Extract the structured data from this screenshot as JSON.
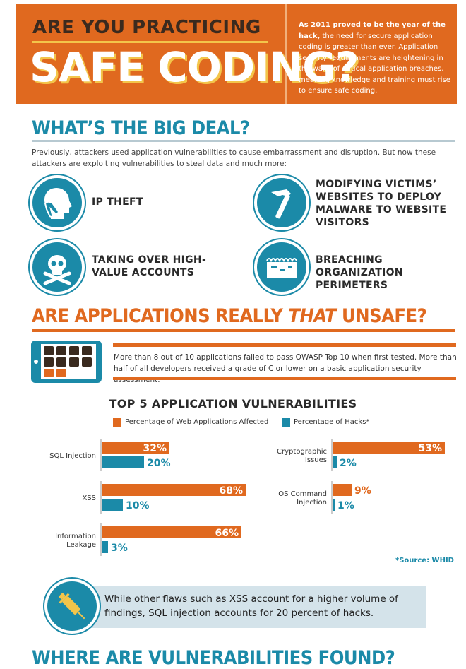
{
  "header": {
    "title_line1": "ARE YOU PRACTICING",
    "title_line2": "SAFE CODING?",
    "intro_bold": "As 2011 proved to be the year of the hack,",
    "intro_rest": "the need for secure application coding is greater than ever. Application security requirements are heightening in the wake of critical application breaches, meaning knowledge and training must rise to ensure safe coding."
  },
  "big_deal": {
    "title": "WHAT’S THE BIG DEAL?",
    "text": "Previously, attackers used application vulnerabilities to cause embarrassment and disruption. But now these attackers are exploiting vulnerabilities to steal data and much more:",
    "items": [
      {
        "label": "IP THEFT",
        "icon": "head-hand-icon"
      },
      {
        "label": "MODIFYING VICTIMS’ WEBSITES TO DEPLOY MALWARE TO WEBSITE VISITORS",
        "icon": "hammer-icon"
      },
      {
        "label": "TAKING OVER HIGH-VALUE ACCOUNTS",
        "icon": "skull-crossbones-icon"
      },
      {
        "label": "BREACHING ORGANIZATION PERIMETERS",
        "icon": "fence-wall-icon"
      }
    ]
  },
  "unsafe": {
    "title_pre": "ARE APPLICATIONS REALLY ",
    "title_em": "THAT",
    "title_post": " UNSAFE?",
    "text": "More than 8 out of 10 applications failed to pass OWASP Top 10 when first tested. More than half of all developers received a grade of C or lower on a basic application security assessment."
  },
  "colors": {
    "orange": "#e0691f",
    "teal": "#1b8aa8"
  },
  "chart_data": {
    "type": "bar",
    "orientation": "horizontal",
    "title": "TOP 5 APPLICATION VULNERABILITIES",
    "legend": [
      "Percentage of Web Applications Affected",
      "Percentage of Hacks*"
    ],
    "categories": [
      "SQL Injection",
      "XSS",
      "Information Leakage",
      "Cryptographic Issues",
      "OS Command Injection"
    ],
    "series": [
      {
        "name": "Percentage of Web Applications Affected",
        "values": [
          32,
          68,
          66,
          53,
          9
        ],
        "labels": [
          "32%",
          "68%",
          "66%",
          "53%",
          "9%"
        ],
        "color": "#e0691f"
      },
      {
        "name": "Percentage of Hacks*",
        "values": [
          20,
          10,
          3,
          2,
          1
        ],
        "labels": [
          "20%",
          "10%",
          "3%",
          "2%",
          "1%"
        ],
        "color": "#1b8aa8"
      }
    ],
    "source": "*Source: WHID"
  },
  "callout": {
    "text": "While other flaws such as XSS account for a higher volume of findings, SQL injection accounts for 20 percent of hacks.",
    "icon": "syringe-icon"
  },
  "next_section": {
    "title": "WHERE ARE VULNERABILITIES FOUND?"
  }
}
